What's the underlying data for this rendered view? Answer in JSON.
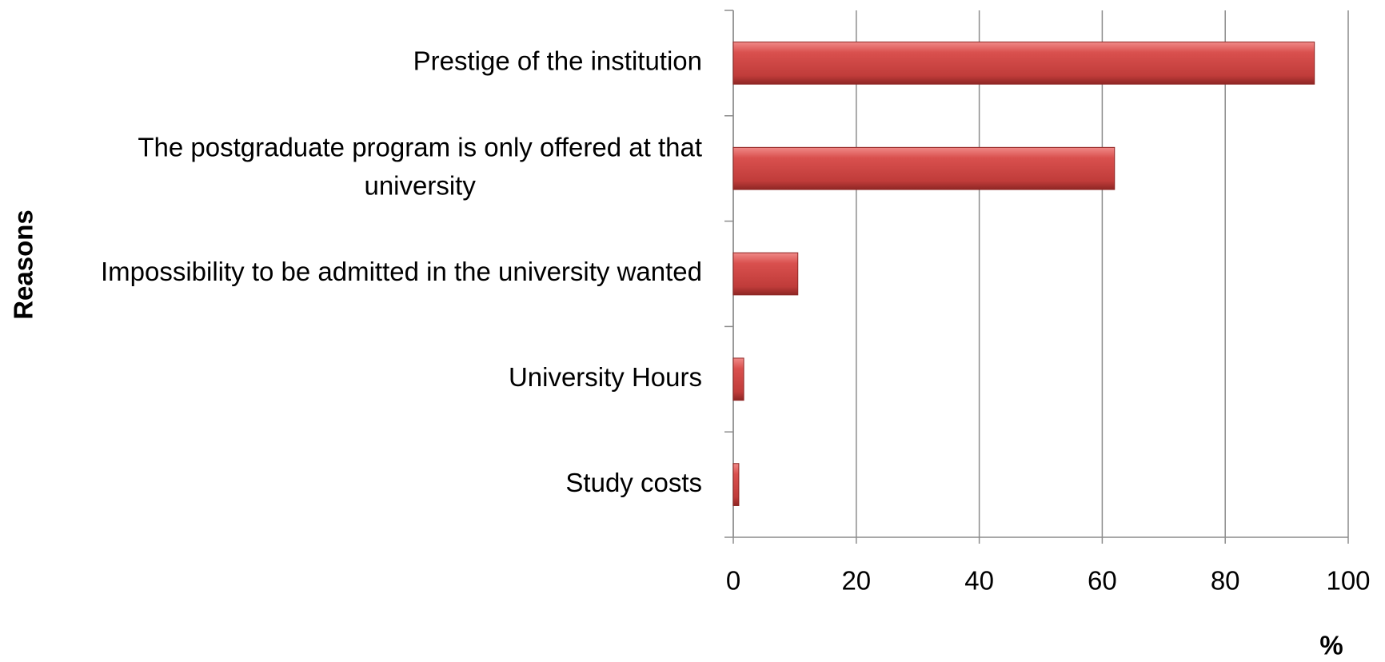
{
  "chart_data": {
    "type": "barh",
    "categories": [
      "Prestige of the institution",
      "The postgraduate program is only offered at that university",
      "Impossibility to be admitted in the university wanted",
      "University Hours",
      "Study costs"
    ],
    "values": [
      94.5,
      62,
      10.5,
      1.7,
      0.9
    ],
    "color": "#c0504d",
    "xlim": [
      0,
      100
    ],
    "xticks": [
      0,
      20,
      40,
      60,
      80,
      100
    ],
    "grid": true,
    "xlabel": "%",
    "ylabel": "Reasons"
  }
}
